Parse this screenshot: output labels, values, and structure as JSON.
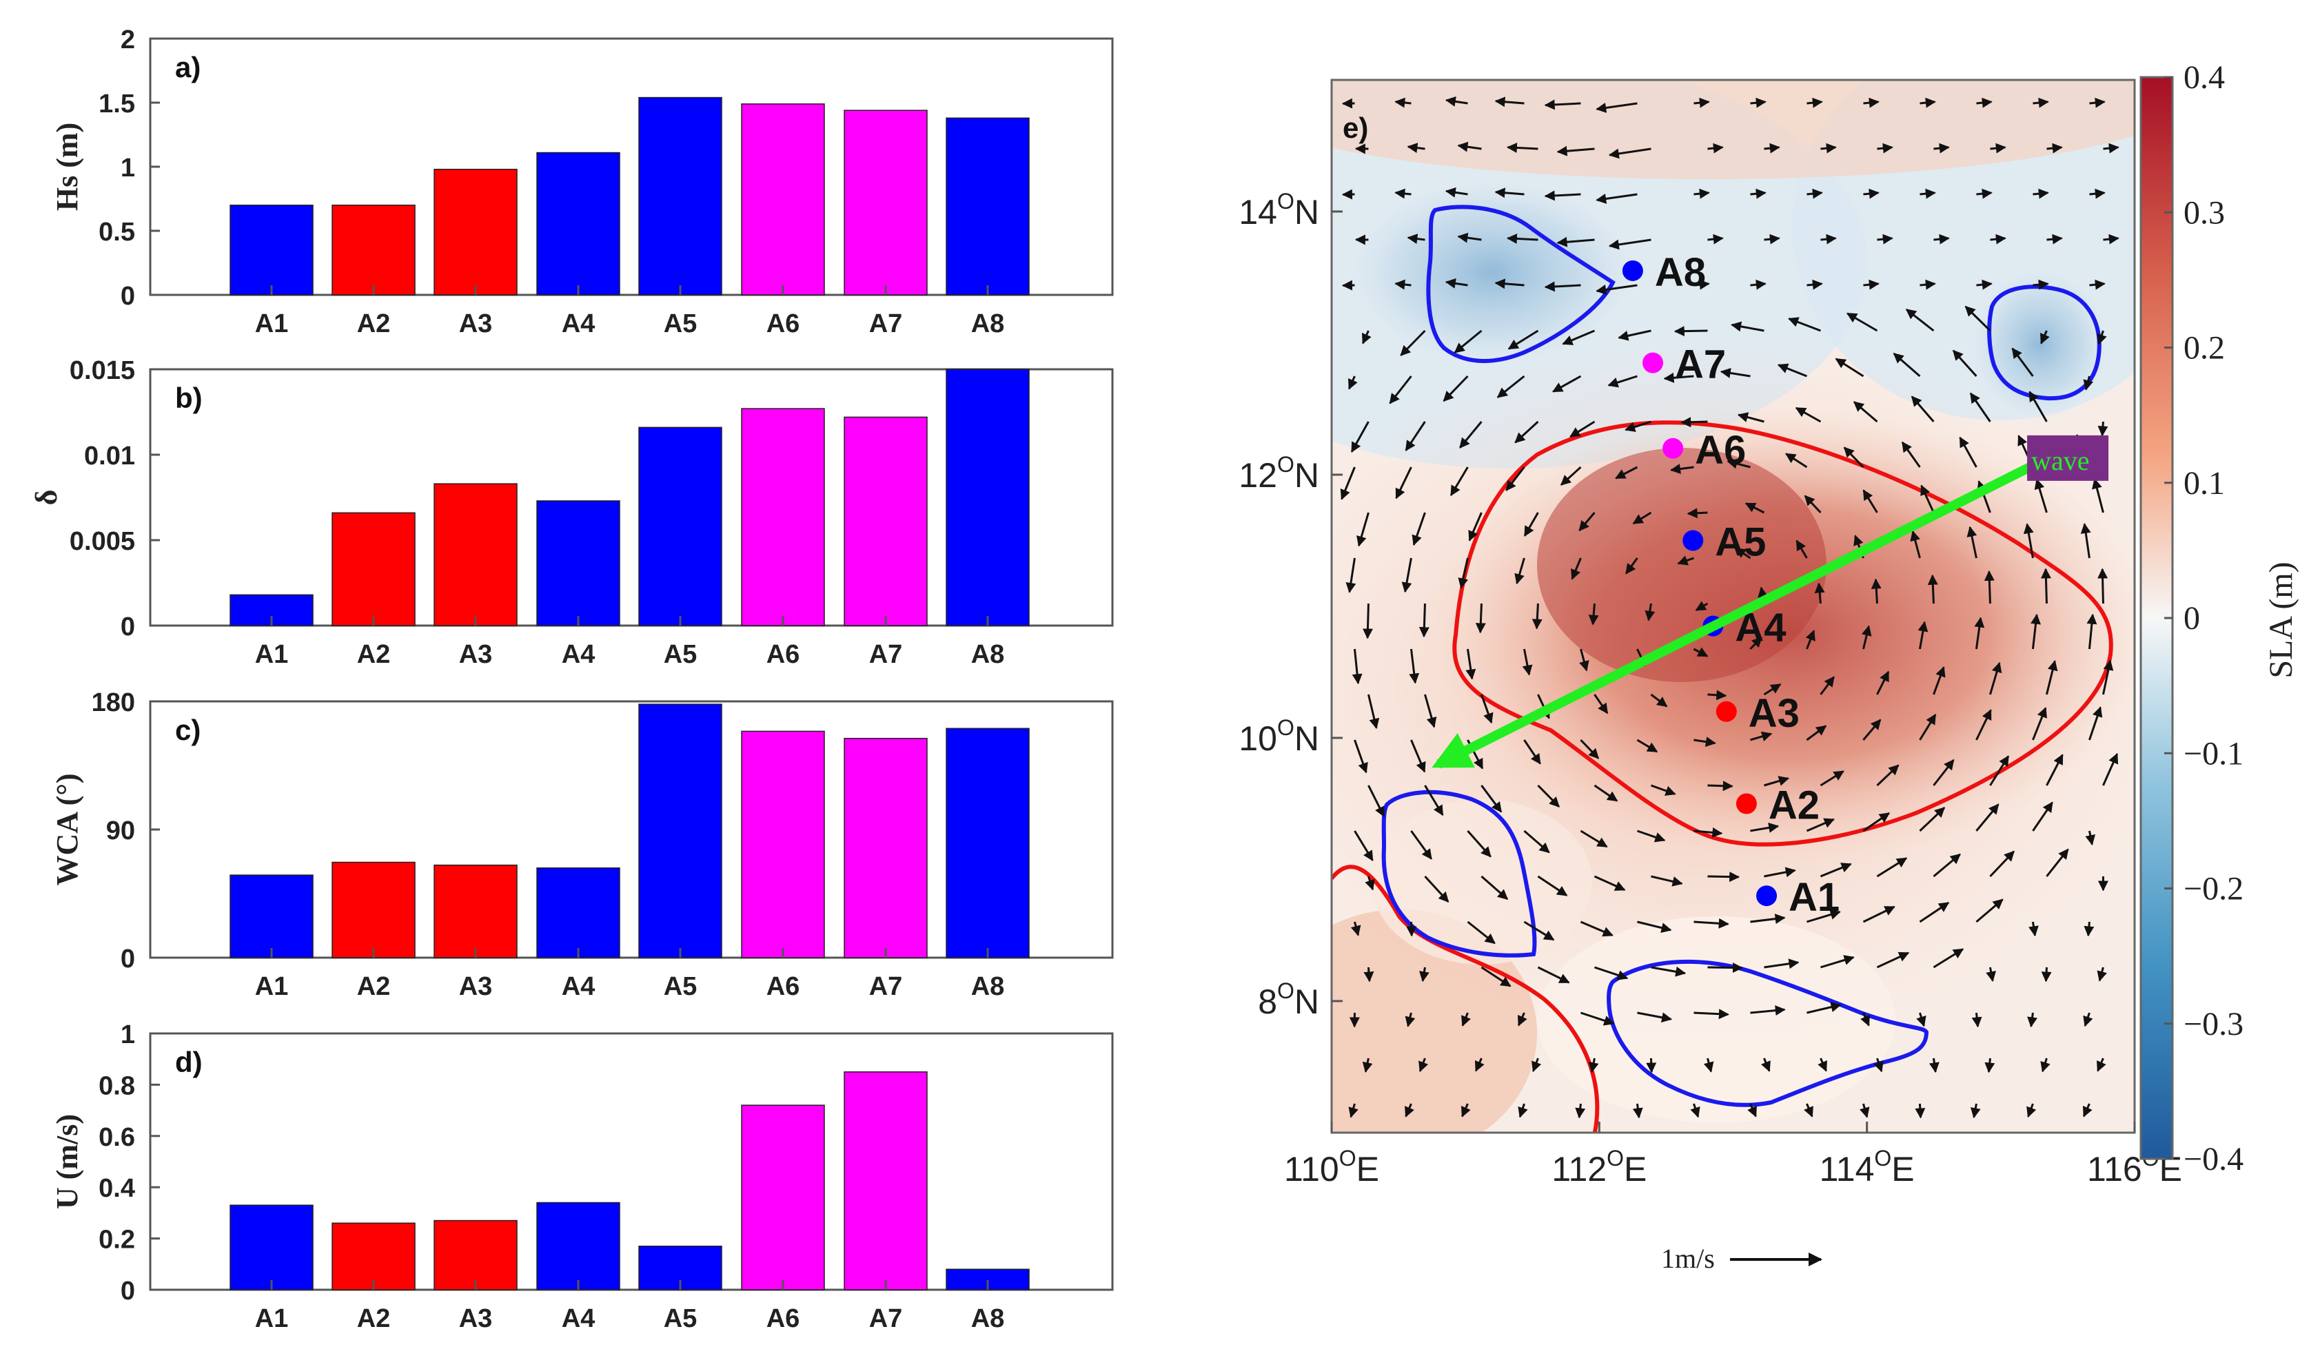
{
  "colors": {
    "blue": "#0000ff",
    "red": "#ff0000",
    "magenta": "#ff00ff",
    "arrow": "#111111",
    "wave_arrow": "#22ee22",
    "wave_box": "#7a2d86",
    "sla_high": "#b2182b",
    "sla_low": "#2166ac"
  },
  "chart_data": [
    {
      "type": "bar",
      "panel_label": "a)",
      "ylabel": "Hs (m)",
      "categories": [
        "A1",
        "A2",
        "A3",
        "A4",
        "A5",
        "A6",
        "A7",
        "A8"
      ],
      "values": [
        0.7,
        0.7,
        0.98,
        1.11,
        1.54,
        1.49,
        1.44,
        1.38
      ],
      "bar_colors": [
        "blue",
        "red",
        "red",
        "blue",
        "blue",
        "magenta",
        "magenta",
        "blue"
      ],
      "ylim": [
        0,
        2
      ],
      "yticks": [
        0,
        0.5,
        1,
        1.5,
        2
      ],
      "ytick_labels": [
        "0",
        "0.5",
        "1",
        "1.5",
        "2"
      ]
    },
    {
      "type": "bar",
      "panel_label": "b)",
      "ylabel": "δ",
      "categories": [
        "A1",
        "A2",
        "A3",
        "A4",
        "A5",
        "A6",
        "A7",
        "A8"
      ],
      "values": [
        0.0018,
        0.0066,
        0.0083,
        0.0073,
        0.0116,
        0.0127,
        0.0122,
        0.015
      ],
      "bar_colors": [
        "blue",
        "red",
        "red",
        "blue",
        "blue",
        "magenta",
        "magenta",
        "blue"
      ],
      "ylim": [
        0,
        0.015
      ],
      "yticks": [
        0,
        0.005,
        0.01,
        0.015
      ],
      "ytick_labels": [
        "0",
        "0.005",
        "0.01",
        "0.015"
      ]
    },
    {
      "type": "bar",
      "panel_label": "c)",
      "ylabel": "WCA (°)",
      "categories": [
        "A1",
        "A2",
        "A3",
        "A4",
        "A5",
        "A6",
        "A7",
        "A8"
      ],
      "values": [
        58,
        67,
        65,
        63,
        178,
        159,
        154,
        161
      ],
      "bar_colors": [
        "blue",
        "red",
        "red",
        "blue",
        "blue",
        "magenta",
        "magenta",
        "blue"
      ],
      "ylim": [
        0,
        180
      ],
      "yticks": [
        0,
        90,
        180
      ],
      "ytick_labels": [
        "0",
        "90",
        "180"
      ]
    },
    {
      "type": "bar",
      "panel_label": "d)",
      "ylabel": "U (m/s)",
      "categories": [
        "A1",
        "A2",
        "A3",
        "A4",
        "A5",
        "A6",
        "A7",
        "A8"
      ],
      "values": [
        0.33,
        0.26,
        0.27,
        0.34,
        0.17,
        0.72,
        0.85,
        0.08
      ],
      "bar_colors": [
        "blue",
        "red",
        "red",
        "blue",
        "blue",
        "magenta",
        "magenta",
        "blue"
      ],
      "ylim": [
        0,
        1
      ],
      "yticks": [
        0,
        0.2,
        0.4,
        0.6,
        0.8,
        1
      ],
      "ytick_labels": [
        "0",
        "0.2",
        "0.4",
        "0.6",
        "0.8",
        "1"
      ]
    },
    {
      "type": "heatmap",
      "panel_label": "e)",
      "xlim": [
        110,
        116
      ],
      "ylim": [
        7,
        15
      ],
      "xticks": [
        110,
        112,
        114,
        116
      ],
      "xtick_labels": [
        "110",
        "112",
        "114",
        "116"
      ],
      "x_suffix": "E",
      "yticks": [
        8,
        10,
        12,
        14
      ],
      "ytick_labels": [
        "8",
        "10",
        "12",
        "14"
      ],
      "y_suffix": "N",
      "degree_sign": "O",
      "colorbar": {
        "label": "SLA (m)",
        "range": [
          -0.4,
          0.4
        ],
        "ticks": [
          0.4,
          0.3,
          0.2,
          0.1,
          0,
          -0.1,
          -0.2,
          -0.3,
          -0.4
        ],
        "tick_labels": [
          "0.4",
          "0.3",
          "0.2",
          "0.1",
          "0",
          "−0.1",
          "−0.2",
          "−0.3",
          "−0.4"
        ]
      },
      "stations": [
        {
          "name": "A1",
          "lon": 113.25,
          "lat": 8.8,
          "color": "blue"
        },
        {
          "name": "A2",
          "lon": 113.1,
          "lat": 9.5,
          "color": "red"
        },
        {
          "name": "A3",
          "lon": 112.95,
          "lat": 10.2,
          "color": "red"
        },
        {
          "name": "A4",
          "lon": 112.85,
          "lat": 10.85,
          "color": "blue"
        },
        {
          "name": "A5",
          "lon": 112.7,
          "lat": 11.5,
          "color": "blue"
        },
        {
          "name": "A6",
          "lon": 112.55,
          "lat": 12.2,
          "color": "magenta"
        },
        {
          "name": "A7",
          "lon": 112.4,
          "lat": 12.85,
          "color": "magenta"
        },
        {
          "name": "A8",
          "lon": 112.25,
          "lat": 13.55,
          "color": "blue"
        }
      ],
      "wave_label": "wave",
      "wave_direction": {
        "from": [
          115.3,
          12.1
        ],
        "to": [
          110.8,
          9.8
        ]
      },
      "scale_label": "1m/s"
    }
  ]
}
